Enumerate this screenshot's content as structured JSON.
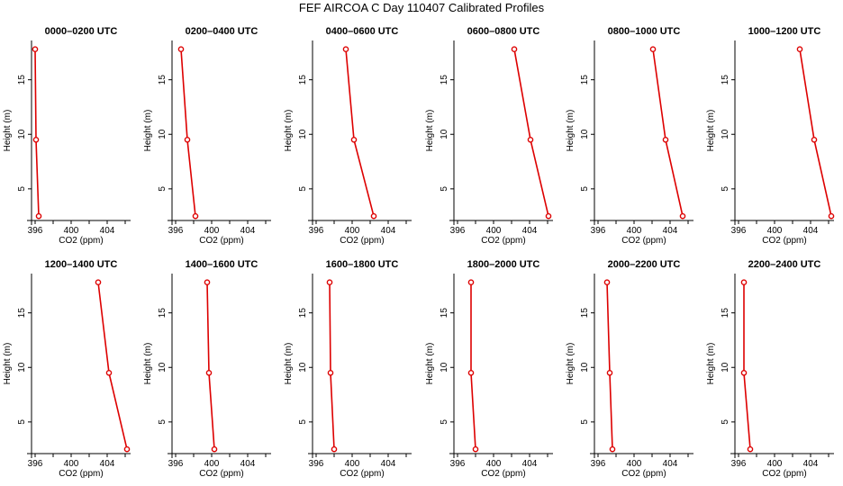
{
  "figure_title": "FEF AIRCOA C  Day 110407  Calibrated Profiles",
  "colors": {
    "line": "#dd0000",
    "axis": "#000000"
  },
  "chart_data": [
    {
      "type": "line",
      "title": "0000–0200 UTC",
      "xlabel": "CO2 (ppm)",
      "ylabel": "Height (m)",
      "xlim": [
        395.6,
        406.6
      ],
      "ylim": [
        2.1,
        18.6
      ],
      "xticks": [
        "396",
        "400",
        "404"
      ],
      "yticks": [
        "5",
        "10",
        "15"
      ],
      "x": [
        396.0,
        396.1,
        396.4
      ],
      "y": [
        17.8,
        9.5,
        2.5
      ]
    },
    {
      "type": "line",
      "title": "0200–0400 UTC",
      "xlabel": "CO2 (ppm)",
      "ylabel": "Height (m)",
      "xlim": [
        395.6,
        406.6
      ],
      "ylim": [
        2.1,
        18.6
      ],
      "xticks": [
        "396",
        "400",
        "404"
      ],
      "yticks": [
        "5",
        "10",
        "15"
      ],
      "x": [
        396.6,
        397.3,
        398.2
      ],
      "y": [
        17.8,
        9.5,
        2.5
      ]
    },
    {
      "type": "line",
      "title": "0400–0600 UTC",
      "xlabel": "CO2 (ppm)",
      "ylabel": "Height (m)",
      "xlim": [
        395.6,
        406.6
      ],
      "ylim": [
        2.1,
        18.6
      ],
      "xticks": [
        "396",
        "400",
        "404"
      ],
      "yticks": [
        "5",
        "10",
        "15"
      ],
      "x": [
        399.3,
        400.2,
        402.4
      ],
      "y": [
        17.8,
        9.5,
        2.5
      ]
    },
    {
      "type": "line",
      "title": "0600–0800 UTC",
      "xlabel": "CO2 (ppm)",
      "ylabel": "Height (m)",
      "xlim": [
        395.6,
        406.6
      ],
      "ylim": [
        2.1,
        18.6
      ],
      "xticks": [
        "396",
        "400",
        "404"
      ],
      "yticks": [
        "5",
        "10",
        "15"
      ],
      "x": [
        402.3,
        404.1,
        406.1
      ],
      "y": [
        17.8,
        9.5,
        2.5
      ]
    },
    {
      "type": "line",
      "title": "0800–1000 UTC",
      "xlabel": "CO2 (ppm)",
      "ylabel": "Height (m)",
      "xlim": [
        395.6,
        406.6
      ],
      "ylim": [
        2.1,
        18.6
      ],
      "xticks": [
        "396",
        "400",
        "404"
      ],
      "yticks": [
        "5",
        "10",
        "15"
      ],
      "x": [
        402.1,
        403.5,
        405.4
      ],
      "y": [
        17.8,
        9.5,
        2.5
      ]
    },
    {
      "type": "line",
      "title": "1000–1200 UTC",
      "xlabel": "CO2 (ppm)",
      "ylabel": "Height (m)",
      "xlim": [
        395.6,
        406.6
      ],
      "ylim": [
        2.1,
        18.6
      ],
      "xticks": [
        "396",
        "400",
        "404"
      ],
      "yticks": [
        "5",
        "10",
        "15"
      ],
      "x": [
        402.8,
        404.4,
        406.3
      ],
      "y": [
        17.8,
        9.5,
        2.5
      ]
    },
    {
      "type": "line",
      "title": "1200–1400 UTC",
      "xlabel": "CO2 (ppm)",
      "ylabel": "Height (m)",
      "xlim": [
        395.6,
        406.6
      ],
      "ylim": [
        2.1,
        18.6
      ],
      "xticks": [
        "396",
        "400",
        "404"
      ],
      "yticks": [
        "5",
        "10",
        "15"
      ],
      "x": [
        403.0,
        404.2,
        406.2
      ],
      "y": [
        17.8,
        9.5,
        2.5
      ]
    },
    {
      "type": "line",
      "title": "1400–1600 UTC",
      "xlabel": "CO2 (ppm)",
      "ylabel": "Height (m)",
      "xlim": [
        395.6,
        406.6
      ],
      "ylim": [
        2.1,
        18.6
      ],
      "xticks": [
        "396",
        "400",
        "404"
      ],
      "yticks": [
        "5",
        "10",
        "15"
      ],
      "x": [
        399.5,
        399.7,
        400.3
      ],
      "y": [
        17.8,
        9.5,
        2.5
      ]
    },
    {
      "type": "line",
      "title": "1600–1800 UTC",
      "xlabel": "CO2 (ppm)",
      "ylabel": "Height (m)",
      "xlim": [
        395.6,
        406.6
      ],
      "ylim": [
        2.1,
        18.6
      ],
      "xticks": [
        "396",
        "400",
        "404"
      ],
      "yticks": [
        "5",
        "10",
        "15"
      ],
      "x": [
        397.5,
        397.6,
        398.0
      ],
      "y": [
        17.8,
        9.5,
        2.5
      ]
    },
    {
      "type": "line",
      "title": "1800–2000 UTC",
      "xlabel": "CO2 (ppm)",
      "ylabel": "Height (m)",
      "xlim": [
        395.6,
        406.6
      ],
      "ylim": [
        2.1,
        18.6
      ],
      "xticks": [
        "396",
        "400",
        "404"
      ],
      "yticks": [
        "5",
        "10",
        "15"
      ],
      "x": [
        397.5,
        397.5,
        398.0
      ],
      "y": [
        17.8,
        9.5,
        2.5
      ]
    },
    {
      "type": "line",
      "title": "2000–2200 UTC",
      "xlabel": "CO2 (ppm)",
      "ylabel": "Height (m)",
      "xlim": [
        395.6,
        406.6
      ],
      "ylim": [
        2.1,
        18.6
      ],
      "xticks": [
        "396",
        "400",
        "404"
      ],
      "yticks": [
        "5",
        "10",
        "15"
      ],
      "x": [
        397.0,
        397.3,
        397.6
      ],
      "y": [
        17.8,
        9.5,
        2.5
      ]
    },
    {
      "type": "line",
      "title": "2200–2400 UTC",
      "xlabel": "CO2 (ppm)",
      "ylabel": "Height (m)",
      "xlim": [
        395.6,
        406.6
      ],
      "ylim": [
        2.1,
        18.6
      ],
      "xticks": [
        "396",
        "400",
        "404"
      ],
      "yticks": [
        "5",
        "10",
        "15"
      ],
      "x": [
        396.6,
        396.6,
        397.3
      ],
      "y": [
        17.8,
        9.5,
        2.5
      ]
    }
  ]
}
